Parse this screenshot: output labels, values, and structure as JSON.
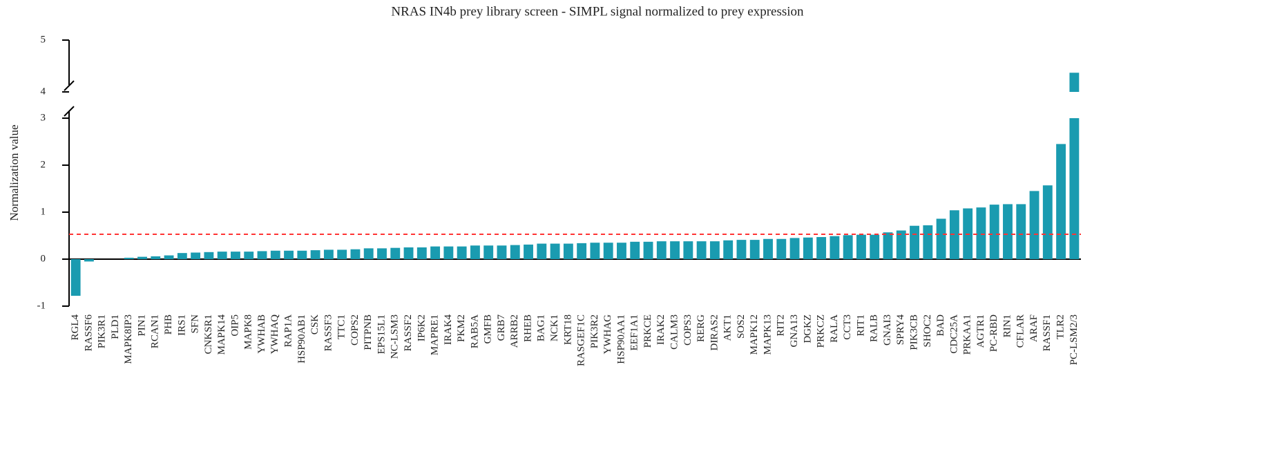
{
  "chart_data": {
    "type": "bar",
    "title": "NRAS IN4b prey library screen - SIMPL signal normalized to prey expression",
    "y_label": "Normalization value",
    "categories": [
      "RGL4",
      "RASSF6",
      "PIK3R1",
      "PLD1",
      "MAPK8IP3",
      "PIN1",
      "RCAN1",
      "PHB",
      "IRS1",
      "SFN",
      "CNKSR1",
      "MAPK14",
      "OIP5",
      "MAPK8",
      "YWHAB",
      "YWHAQ",
      "RAP1A",
      "HSP90AB1",
      "CSK",
      "RASSF3",
      "TTC1",
      "COPS2",
      "PITPNB",
      "EPS15L1",
      "NC-LSM3",
      "RASSF2",
      "IP6K2",
      "MAPRE1",
      "IRAK4",
      "PKM2",
      "RAB5A",
      "GMFB",
      "GRB7",
      "ARRB2",
      "RHEB",
      "BAG1",
      "NCK1",
      "KRT18",
      "RASGEF1C",
      "PIK3R2",
      "YWHAG",
      "HSP90AA1",
      "EEF1A1",
      "PRKCE",
      "IRAK2",
      "CALM3",
      "COPS3",
      "RERG",
      "DIRAS2",
      "AKT1",
      "SOS2",
      "MAPK12",
      "MAPK13",
      "RIT2",
      "GNA13",
      "DGKZ",
      "PRKCZ",
      "RALA",
      "CCT3",
      "RIT1",
      "RALB",
      "GNAI3",
      "SPRY4",
      "PIK3CB",
      "SHOC2",
      "BAD",
      "CDC25A",
      "PRKAA1",
      "AGTR1",
      "PC-RBD",
      "RIN1",
      "CFLAR",
      "ARAF",
      "RASSF1",
      "TLR2",
      "PC-LSM2/3"
    ],
    "values": [
      -0.78,
      -0.05,
      0,
      0,
      0.03,
      0.05,
      0.06,
      0.08,
      0.13,
      0.14,
      0.15,
      0.16,
      0.16,
      0.16,
      0.17,
      0.18,
      0.18,
      0.18,
      0.19,
      0.2,
      0.2,
      0.21,
      0.23,
      0.23,
      0.24,
      0.25,
      0.25,
      0.27,
      0.27,
      0.27,
      0.29,
      0.29,
      0.29,
      0.3,
      0.31,
      0.33,
      0.33,
      0.33,
      0.34,
      0.35,
      0.35,
      0.35,
      0.37,
      0.37,
      0.38,
      0.38,
      0.38,
      0.38,
      0.38,
      0.4,
      0.41,
      0.41,
      0.43,
      0.43,
      0.45,
      0.46,
      0.47,
      0.49,
      0.51,
      0.52,
      0.52,
      0.57,
      0.61,
      0.71,
      0.72,
      0.86,
      1.04,
      1.08,
      1.1,
      1.16,
      1.17,
      1.17,
      1.45,
      1.57,
      2.45,
      4.37
    ],
    "color": "#1a9bb0",
    "ylim": [
      -1,
      5
    ],
    "yticks": [
      -1,
      0,
      1,
      2,
      3,
      4,
      5
    ],
    "axis_break": [
      3,
      4
    ],
    "threshold": 0.53,
    "threshold_color": "#ff3333"
  }
}
